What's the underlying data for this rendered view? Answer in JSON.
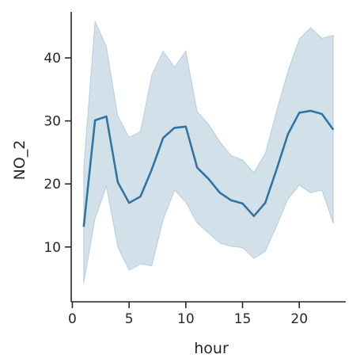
{
  "chart_data": {
    "type": "line",
    "xlabel": "hour",
    "ylabel": "NO_2",
    "xlim": [
      -0.1,
      24.1
    ],
    "ylim": [
      1.3,
      47.3
    ],
    "xticks": [
      0,
      5,
      10,
      15,
      20
    ],
    "yticks": [
      10,
      20,
      30,
      40
    ],
    "grid": false,
    "colors": {
      "line": "#3274a1",
      "band": "#3274a1",
      "axis": "#262626"
    },
    "series": [
      {
        "x": [
          1,
          2,
          3,
          4,
          5,
          6,
          7,
          8,
          9,
          10,
          11,
          12,
          13,
          14,
          15,
          16,
          17,
          18,
          19,
          20,
          21,
          22,
          23
        ],
        "y": [
          13.2,
          30.1,
          30.7,
          20.3,
          17.0,
          18.0,
          22.3,
          27.3,
          28.9,
          29.1,
          22.6,
          20.8,
          18.6,
          17.4,
          16.9,
          14.9,
          17.0,
          22.3,
          27.9,
          31.3,
          31.6,
          31.1,
          28.6
        ],
        "ci_low": [
          4.2,
          14.5,
          19.6,
          10.0,
          6.3,
          7.3,
          7.0,
          14.3,
          19.0,
          17.1,
          13.8,
          12.2,
          10.6,
          10.1,
          9.9,
          8.2,
          9.3,
          13.3,
          17.6,
          19.8,
          18.6,
          19.0,
          13.7
        ],
        "ci_high": [
          22.6,
          45.8,
          41.8,
          30.8,
          27.4,
          28.3,
          37.3,
          41.1,
          38.5,
          41.1,
          31.5,
          29.5,
          26.7,
          24.5,
          23.8,
          21.8,
          24.8,
          31.6,
          37.9,
          43.0,
          44.8,
          43.1,
          43.6
        ]
      }
    ]
  }
}
